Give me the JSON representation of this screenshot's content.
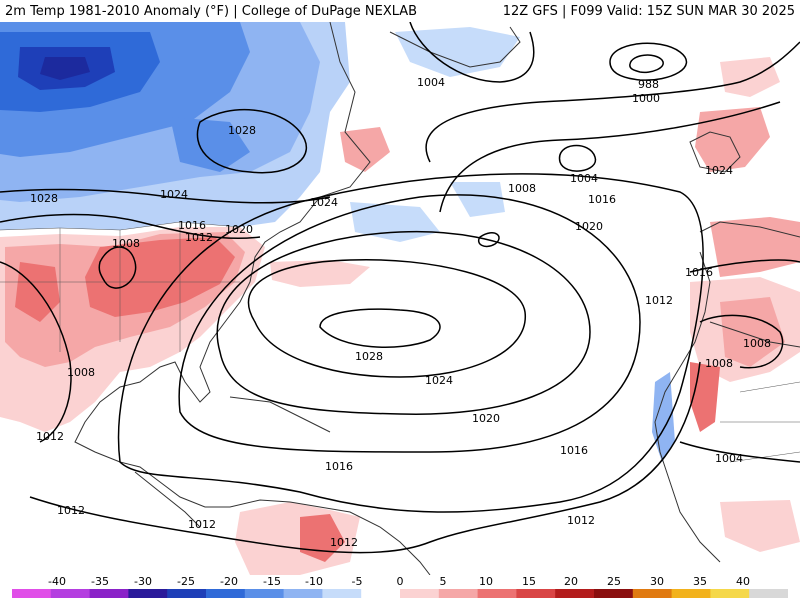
{
  "header": {
    "title_left": "2m Temp 1981-2010 Anomaly (°F) | College of DuPage NEXLAB",
    "title_right": "12Z GFS | F099 Valid: 15Z SUN MAR 30 2025"
  },
  "isobar_labels": [
    "1004",
    "1000",
    "988",
    "1028",
    "1028",
    "1004",
    "1024",
    "1024",
    "1016",
    "1012",
    "1020",
    "1008",
    "1016",
    "1008",
    "1024",
    "1020",
    "1016",
    "1012",
    "1028",
    "1024",
    "1008",
    "1008",
    "1020",
    "1012",
    "1016",
    "1008",
    "1004",
    "1012",
    "1012",
    "1016",
    "1012",
    "1012"
  ],
  "colorbar": {
    "labels": [
      "-40",
      "-35",
      "-30",
      "-25",
      "-20",
      "-15",
      "-10",
      "-5",
      "0",
      "5",
      "10",
      "15",
      "20",
      "25",
      "30",
      "35",
      "40"
    ],
    "colors": [
      "#e04ee8",
      "#b43ee0",
      "#8a22c8",
      "#2a1a9a",
      "#1e3fb8",
      "#2f6ad8",
      "#5a8fe8",
      "#8fb4f2",
      "#c6dcfa",
      "#ffffff",
      "#fbd2d2",
      "#f5a7a7",
      "#ec7272",
      "#d94545",
      "#b31c1c",
      "#8a0f0f",
      "#e07a10",
      "#f2b21c",
      "#f5d84a",
      "#d8d8d8"
    ]
  },
  "colors": {
    "cold_strong": "#1c2a9e",
    "cold": "#4f7ee6",
    "cool": "#b9d2f8",
    "warm": "#f7b3b3",
    "warm_strong": "#ec6b6b",
    "land": "#ffffff",
    "ocean": "#ffffff",
    "isobar": "#000000",
    "coastline": "#333333"
  }
}
